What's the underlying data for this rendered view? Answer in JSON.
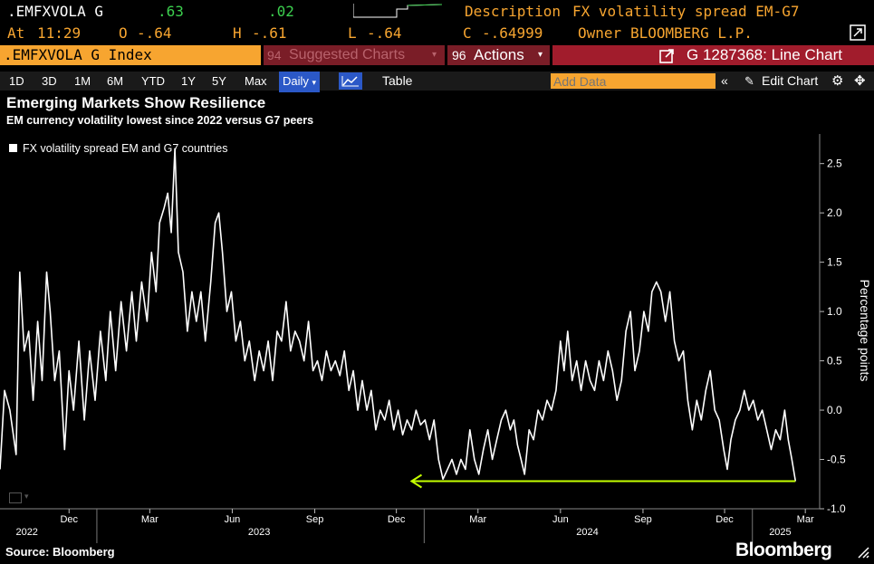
{
  "header": {
    "ticker": ".EMFXVOLA G",
    "change": ".63",
    "change2": ".02",
    "description_label": "Description",
    "description": "FX volatility spread EM-G7",
    "at_label": "At",
    "time": "11:29",
    "open_label": "O",
    "open": "-.64",
    "high_label": "H",
    "high": "-.61",
    "low_label": "L",
    "low": "-.64",
    "close_label": "C",
    "close": "-.64999",
    "owner_label": "Owner",
    "owner": "BLOOMBERG L.P."
  },
  "toolbar": {
    "security": ".EMFXVOLA G Index",
    "suggested_num": "94",
    "suggested": "Suggested Charts",
    "actions_num": "96",
    "actions": "Actions",
    "chart_id": "G 1287368: Line Chart"
  },
  "timeframes": [
    "1D",
    "3D",
    "1M",
    "6M",
    "YTD",
    "1Y",
    "5Y",
    "Max"
  ],
  "period": "Daily",
  "table_label": "Table",
  "add_data_placeholder": "Add Data",
  "edit_chart": "Edit Chart",
  "chart_data": {
    "type": "line",
    "title": "Emerging Markets Show Resilience",
    "subtitle": "EM currency volatility lowest since 2022 versus G7 peers",
    "ylabel": "Percentage points",
    "ylim": [
      -1.0,
      2.8
    ],
    "yticks": [
      2.5,
      2.0,
      1.5,
      1.0,
      0.5,
      0.0,
      -0.5,
      -1.0
    ],
    "ytick_labels": [
      "2.5",
      "2.0",
      "1.5",
      "1.0",
      "0.5",
      "0.0",
      "-0.5",
      "-1.0"
    ],
    "xticks": [
      {
        "date": "2022-12-01",
        "label": "Dec"
      },
      {
        "date": "2023-03-01",
        "label": "Mar"
      },
      {
        "date": "2023-06-01",
        "label": "Jun"
      },
      {
        "date": "2023-09-01",
        "label": "Sep"
      },
      {
        "date": "2023-12-01",
        "label": "Dec"
      },
      {
        "date": "2024-03-01",
        "label": "Mar"
      },
      {
        "date": "2024-06-01",
        "label": "Jun"
      },
      {
        "date": "2024-09-01",
        "label": "Sep"
      },
      {
        "date": "2024-12-01",
        "label": "Dec"
      },
      {
        "date": "2025-03-01",
        "label": "Mar"
      }
    ],
    "year_labels": [
      {
        "date": "2022-10-15",
        "label": "2022"
      },
      {
        "date": "2023-07-01",
        "label": "2023"
      },
      {
        "date": "2024-07-01",
        "label": "2024"
      },
      {
        "date": "2025-02-01",
        "label": "2025"
      }
    ],
    "legend": {
      "position": "top-left",
      "entries": [
        "FX volatility spread EM and G7 countries"
      ]
    },
    "series": [
      {
        "name": "FX volatility spread EM and G7 countries",
        "color": "#ffffff",
        "points": [
          [
            "2022-09-15",
            -0.6
          ],
          [
            "2022-09-20",
            0.2
          ],
          [
            "2022-09-26",
            0.0
          ],
          [
            "2022-10-03",
            -0.45
          ],
          [
            "2022-10-07",
            1.4
          ],
          [
            "2022-10-12",
            0.6
          ],
          [
            "2022-10-17",
            0.8
          ],
          [
            "2022-10-22",
            0.1
          ],
          [
            "2022-10-27",
            0.9
          ],
          [
            "2022-11-01",
            0.3
          ],
          [
            "2022-11-06",
            1.4
          ],
          [
            "2022-11-10",
            1.0
          ],
          [
            "2022-11-15",
            0.3
          ],
          [
            "2022-11-20",
            0.6
          ],
          [
            "2022-11-26",
            -0.4
          ],
          [
            "2022-12-01",
            0.4
          ],
          [
            "2022-12-06",
            0.0
          ],
          [
            "2022-12-12",
            0.7
          ],
          [
            "2022-12-18",
            -0.1
          ],
          [
            "2022-12-24",
            0.6
          ],
          [
            "2022-12-30",
            0.1
          ],
          [
            "2023-01-05",
            0.8
          ],
          [
            "2023-01-11",
            0.3
          ],
          [
            "2023-01-16",
            1.0
          ],
          [
            "2023-01-22",
            0.4
          ],
          [
            "2023-01-28",
            1.1
          ],
          [
            "2023-02-03",
            0.6
          ],
          [
            "2023-02-09",
            1.2
          ],
          [
            "2023-02-14",
            0.7
          ],
          [
            "2023-02-20",
            1.3
          ],
          [
            "2023-02-26",
            0.9
          ],
          [
            "2023-03-03",
            1.6
          ],
          [
            "2023-03-08",
            1.2
          ],
          [
            "2023-03-12",
            1.9
          ],
          [
            "2023-03-17",
            2.05
          ],
          [
            "2023-03-21",
            2.2
          ],
          [
            "2023-03-25",
            1.8
          ],
          [
            "2023-03-29",
            2.65
          ],
          [
            "2023-04-02",
            1.6
          ],
          [
            "2023-04-07",
            1.4
          ],
          [
            "2023-04-12",
            0.8
          ],
          [
            "2023-04-17",
            1.2
          ],
          [
            "2023-04-22",
            0.9
          ],
          [
            "2023-04-27",
            1.2
          ],
          [
            "2023-05-02",
            0.7
          ],
          [
            "2023-05-08",
            1.3
          ],
          [
            "2023-05-13",
            1.9
          ],
          [
            "2023-05-17",
            2.0
          ],
          [
            "2023-05-21",
            1.6
          ],
          [
            "2023-05-26",
            1.0
          ],
          [
            "2023-05-31",
            1.2
          ],
          [
            "2023-06-05",
            0.7
          ],
          [
            "2023-06-10",
            0.9
          ],
          [
            "2023-06-15",
            0.5
          ],
          [
            "2023-06-20",
            0.7
          ],
          [
            "2023-06-26",
            0.3
          ],
          [
            "2023-07-01",
            0.6
          ],
          [
            "2023-07-06",
            0.4
          ],
          [
            "2023-07-11",
            0.7
          ],
          [
            "2023-07-16",
            0.3
          ],
          [
            "2023-07-21",
            0.8
          ],
          [
            "2023-07-26",
            0.7
          ],
          [
            "2023-07-31",
            1.1
          ],
          [
            "2023-08-05",
            0.6
          ],
          [
            "2023-08-10",
            0.8
          ],
          [
            "2023-08-15",
            0.7
          ],
          [
            "2023-08-20",
            0.5
          ],
          [
            "2023-08-25",
            0.9
          ],
          [
            "2023-08-30",
            0.4
          ],
          [
            "2023-09-04",
            0.5
          ],
          [
            "2023-09-09",
            0.3
          ],
          [
            "2023-09-14",
            0.6
          ],
          [
            "2023-09-19",
            0.4
          ],
          [
            "2023-09-24",
            0.5
          ],
          [
            "2023-09-29",
            0.35
          ],
          [
            "2023-10-04",
            0.6
          ],
          [
            "2023-10-09",
            0.2
          ],
          [
            "2023-10-14",
            0.4
          ],
          [
            "2023-10-19",
            0.0
          ],
          [
            "2023-10-24",
            0.3
          ],
          [
            "2023-10-29",
            0.0
          ],
          [
            "2023-11-03",
            0.2
          ],
          [
            "2023-11-08",
            -0.2
          ],
          [
            "2023-11-13",
            0.0
          ],
          [
            "2023-11-18",
            -0.1
          ],
          [
            "2023-11-23",
            0.1
          ],
          [
            "2023-11-28",
            -0.2
          ],
          [
            "2023-12-03",
            0.0
          ],
          [
            "2023-12-08",
            -0.25
          ],
          [
            "2023-12-13",
            -0.1
          ],
          [
            "2023-12-18",
            -0.2
          ],
          [
            "2023-12-23",
            0.0
          ],
          [
            "2023-12-28",
            -0.15
          ],
          [
            "2024-01-02",
            -0.1
          ],
          [
            "2024-01-07",
            -0.3
          ],
          [
            "2024-01-12",
            -0.1
          ],
          [
            "2024-01-17",
            -0.5
          ],
          [
            "2024-01-22",
            -0.7
          ],
          [
            "2024-01-27",
            -0.6
          ],
          [
            "2024-02-01",
            -0.5
          ],
          [
            "2024-02-06",
            -0.65
          ],
          [
            "2024-02-11",
            -0.5
          ],
          [
            "2024-02-16",
            -0.6
          ],
          [
            "2024-02-21",
            -0.2
          ],
          [
            "2024-02-26",
            -0.5
          ],
          [
            "2024-03-02",
            -0.65
          ],
          [
            "2024-03-07",
            -0.4
          ],
          [
            "2024-03-12",
            -0.2
          ],
          [
            "2024-03-17",
            -0.5
          ],
          [
            "2024-03-22",
            -0.3
          ],
          [
            "2024-03-27",
            -0.1
          ],
          [
            "2024-04-01",
            0.0
          ],
          [
            "2024-04-06",
            -0.2
          ],
          [
            "2024-04-10",
            -0.1
          ],
          [
            "2024-04-14",
            -0.35
          ],
          [
            "2024-04-18",
            -0.5
          ],
          [
            "2024-04-22",
            -0.65
          ],
          [
            "2024-04-27",
            -0.2
          ],
          [
            "2024-05-02",
            -0.3
          ],
          [
            "2024-05-07",
            0.0
          ],
          [
            "2024-05-12",
            -0.1
          ],
          [
            "2024-05-17",
            0.1
          ],
          [
            "2024-05-22",
            0.0
          ],
          [
            "2024-05-27",
            0.2
          ],
          [
            "2024-06-01",
            0.7
          ],
          [
            "2024-06-05",
            0.4
          ],
          [
            "2024-06-09",
            0.8
          ],
          [
            "2024-06-14",
            0.3
          ],
          [
            "2024-06-19",
            0.5
          ],
          [
            "2024-06-24",
            0.2
          ],
          [
            "2024-06-29",
            0.5
          ],
          [
            "2024-07-04",
            0.3
          ],
          [
            "2024-07-09",
            0.2
          ],
          [
            "2024-07-14",
            0.5
          ],
          [
            "2024-07-19",
            0.3
          ],
          [
            "2024-07-24",
            0.6
          ],
          [
            "2024-07-29",
            0.4
          ],
          [
            "2024-08-03",
            0.1
          ],
          [
            "2024-08-08",
            0.3
          ],
          [
            "2024-08-13",
            0.8
          ],
          [
            "2024-08-18",
            1.0
          ],
          [
            "2024-08-23",
            0.4
          ],
          [
            "2024-08-28",
            0.6
          ],
          [
            "2024-09-02",
            1.0
          ],
          [
            "2024-09-07",
            0.8
          ],
          [
            "2024-09-11",
            1.2
          ],
          [
            "2024-09-16",
            1.3
          ],
          [
            "2024-09-21",
            1.2
          ],
          [
            "2024-09-26",
            0.9
          ],
          [
            "2024-10-01",
            1.2
          ],
          [
            "2024-10-06",
            0.7
          ],
          [
            "2024-10-11",
            0.5
          ],
          [
            "2024-10-16",
            0.6
          ],
          [
            "2024-10-21",
            0.1
          ],
          [
            "2024-10-26",
            -0.2
          ],
          [
            "2024-10-31",
            0.1
          ],
          [
            "2024-11-05",
            -0.1
          ],
          [
            "2024-11-10",
            0.2
          ],
          [
            "2024-11-15",
            0.4
          ],
          [
            "2024-11-20",
            0.0
          ],
          [
            "2024-11-25",
            -0.1
          ],
          [
            "2024-11-30",
            -0.4
          ],
          [
            "2024-12-04",
            -0.6
          ],
          [
            "2024-12-08",
            -0.3
          ],
          [
            "2024-12-13",
            -0.1
          ],
          [
            "2024-12-18",
            0.0
          ],
          [
            "2024-12-23",
            0.2
          ],
          [
            "2024-12-28",
            0.0
          ],
          [
            "2025-01-02",
            0.1
          ],
          [
            "2025-01-07",
            -0.1
          ],
          [
            "2025-01-12",
            0.0
          ],
          [
            "2025-01-17",
            -0.2
          ],
          [
            "2025-01-22",
            -0.4
          ],
          [
            "2025-01-27",
            -0.2
          ],
          [
            "2025-02-01",
            -0.3
          ],
          [
            "2025-02-06",
            0.0
          ],
          [
            "2025-02-10",
            -0.3
          ],
          [
            "2025-02-14",
            -0.5
          ],
          [
            "2025-02-18",
            -0.72
          ]
        ]
      }
    ],
    "annotation": {
      "type": "horizontal-arrow",
      "y": -0.72,
      "from": "2025-02-18",
      "to": "2023-12-18",
      "color": "#c4ff00"
    }
  },
  "footer": {
    "source": "Source: Bloomberg",
    "brand": "Bloomberg"
  }
}
